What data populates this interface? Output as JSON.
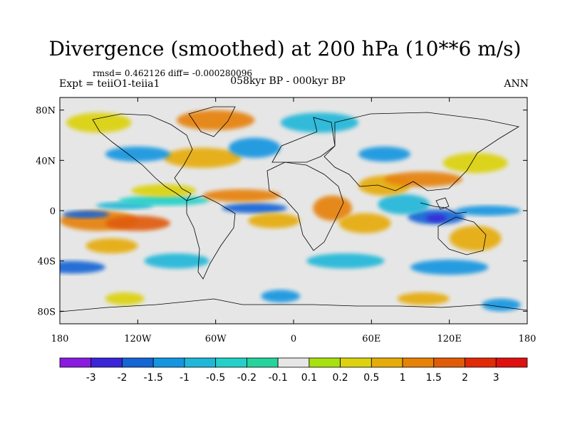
{
  "title": "Divergence (smoothed) at 200 hPa (10**6 m/s)",
  "stats": "rmsd= 0.462126 diff= -0.000280096",
  "experiment": "Expt = teiiO1-teiia1",
  "period": "058kyr BP - 000kyr BP",
  "season": "ANN",
  "lat_ticks": [
    "80N",
    "40N",
    "0",
    "40S",
    "80S"
  ],
  "lat_values": [
    80,
    40,
    0,
    -40,
    -80
  ],
  "lon_ticks": [
    "180",
    "120W",
    "60W",
    "0",
    "60E",
    "120E",
    "180"
  ],
  "lon_values": [
    -180,
    -120,
    -60,
    0,
    60,
    120,
    180
  ],
  "colorbar": {
    "labels": [
      "-3",
      "-2",
      "-1.5",
      "-1",
      "-0.5",
      "-0.2",
      "-0.1",
      "0.1",
      "0.2",
      "0.5",
      "1",
      "1.5",
      "2",
      "3"
    ],
    "colors": [
      "#8a1ce0",
      "#3a25d8",
      "#1565d5",
      "#1596e0",
      "#20b7d8",
      "#24d0c8",
      "#26d39c",
      "#e6e6e6",
      "#a8e010",
      "#dcd210",
      "#e6ac0a",
      "#e68208",
      "#e05c08",
      "#e02a08",
      "#e01010"
    ]
  },
  "map_colors": {
    "neutral": "#e6e6e6",
    "coast": "#000000"
  },
  "fields": [
    {
      "lon": -150,
      "lat": -8,
      "rx": 30,
      "ry": 8,
      "level": 11
    },
    {
      "lon": -120,
      "lat": -10,
      "rx": 25,
      "ry": 6,
      "level": 12
    },
    {
      "lon": -140,
      "lat": -28,
      "rx": 20,
      "ry": 6,
      "level": 10
    },
    {
      "lon": -160,
      "lat": -3,
      "rx": 18,
      "ry": 3,
      "level": 2
    },
    {
      "lon": -130,
      "lat": 4,
      "rx": 22,
      "ry": 3,
      "level": 4
    },
    {
      "lon": -100,
      "lat": 8,
      "rx": 35,
      "ry": 4,
      "level": 5
    },
    {
      "lon": -30,
      "lat": 2,
      "rx": 25,
      "ry": 4,
      "level": 2
    },
    {
      "lon": -40,
      "lat": 12,
      "rx": 30,
      "ry": 5,
      "level": 11
    },
    {
      "lon": -100,
      "lat": 16,
      "rx": 25,
      "ry": 5,
      "level": 9
    },
    {
      "lon": -15,
      "lat": -8,
      "rx": 20,
      "ry": 6,
      "level": 10
    },
    {
      "lon": 30,
      "lat": 2,
      "rx": 15,
      "ry": 10,
      "level": 11
    },
    {
      "lon": 55,
      "lat": -10,
      "rx": 20,
      "ry": 8,
      "level": 10
    },
    {
      "lon": 110,
      "lat": -5,
      "rx": 22,
      "ry": 6,
      "level": 2
    },
    {
      "lon": 110,
      "lat": -6,
      "rx": 8,
      "ry": 3,
      "level": 1
    },
    {
      "lon": 85,
      "lat": 5,
      "rx": 20,
      "ry": 8,
      "level": 4
    },
    {
      "lon": 150,
      "lat": 0,
      "rx": 25,
      "ry": 4,
      "level": 3
    },
    {
      "lon": 140,
      "lat": -22,
      "rx": 20,
      "ry": 10,
      "level": 10
    },
    {
      "lon": 70,
      "lat": 20,
      "rx": 20,
      "ry": 8,
      "level": 10
    },
    {
      "lon": 100,
      "lat": 25,
      "rx": 30,
      "ry": 6,
      "level": 11
    },
    {
      "lon": 140,
      "lat": 38,
      "rx": 25,
      "ry": 8,
      "level": 9
    },
    {
      "lon": -70,
      "lat": 42,
      "rx": 30,
      "ry": 8,
      "level": 10
    },
    {
      "lon": -120,
      "lat": 45,
      "rx": 25,
      "ry": 6,
      "level": 3
    },
    {
      "lon": -30,
      "lat": 50,
      "rx": 20,
      "ry": 8,
      "level": 3
    },
    {
      "lon": 20,
      "lat": 70,
      "rx": 30,
      "ry": 8,
      "level": 4
    },
    {
      "lon": -150,
      "lat": 70,
      "rx": 25,
      "ry": 8,
      "level": 9
    },
    {
      "lon": -60,
      "lat": 72,
      "rx": 30,
      "ry": 8,
      "level": 11
    },
    {
      "lon": 70,
      "lat": 45,
      "rx": 20,
      "ry": 6,
      "level": 3
    },
    {
      "lon": -170,
      "lat": -45,
      "rx": 25,
      "ry": 5,
      "level": 2
    },
    {
      "lon": -90,
      "lat": -40,
      "rx": 25,
      "ry": 6,
      "level": 4
    },
    {
      "lon": 40,
      "lat": -40,
      "rx": 30,
      "ry": 6,
      "level": 4
    },
    {
      "lon": 120,
      "lat": -45,
      "rx": 30,
      "ry": 6,
      "level": 3
    },
    {
      "lon": -130,
      "lat": -70,
      "rx": 15,
      "ry": 5,
      "level": 9
    },
    {
      "lon": -10,
      "lat": -68,
      "rx": 15,
      "ry": 5,
      "level": 3
    },
    {
      "lon": 100,
      "lat": -70,
      "rx": 20,
      "ry": 5,
      "level": 10
    },
    {
      "lon": 160,
      "lat": -75,
      "rx": 15,
      "ry": 5,
      "level": 3
    }
  ]
}
